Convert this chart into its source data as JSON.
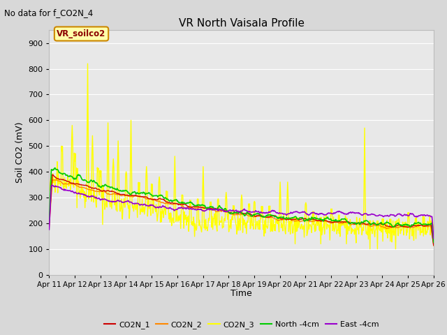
{
  "title": "VR North Vaisala Profile",
  "subtitle": "No data for f_CO2N_4",
  "box_label": "VR_soilco2",
  "xlabel": "Time",
  "ylabel": "Soil CO2 (mV)",
  "ylim": [
    0,
    950
  ],
  "yticks": [
    0,
    100,
    200,
    300,
    400,
    500,
    600,
    700,
    800,
    900
  ],
  "x_tick_labels": [
    "Apr 11",
    "Apr 12",
    "Apr 13",
    "Apr 14",
    "Apr 15",
    "Apr 16",
    "Apr 17",
    "Apr 18",
    "Apr 19",
    "Apr 20",
    "Apr 21",
    "Apr 22",
    "Apr 23",
    "Apr 24",
    "Apr 25",
    "Apr 26"
  ],
  "bg_color": "#d8d8d8",
  "plot_bg_color": "#e8e8e8",
  "grid_color": "white",
  "legend_entries": [
    "CO2N_1",
    "CO2N_2",
    "CO2N_3",
    "North -4cm",
    "East -4cm"
  ],
  "line_colors": [
    "#cc0000",
    "#ff8800",
    "#ffff00",
    "#00cc00",
    "#9900cc"
  ],
  "line_widths": [
    1.0,
    1.0,
    1.0,
    1.2,
    1.2
  ]
}
